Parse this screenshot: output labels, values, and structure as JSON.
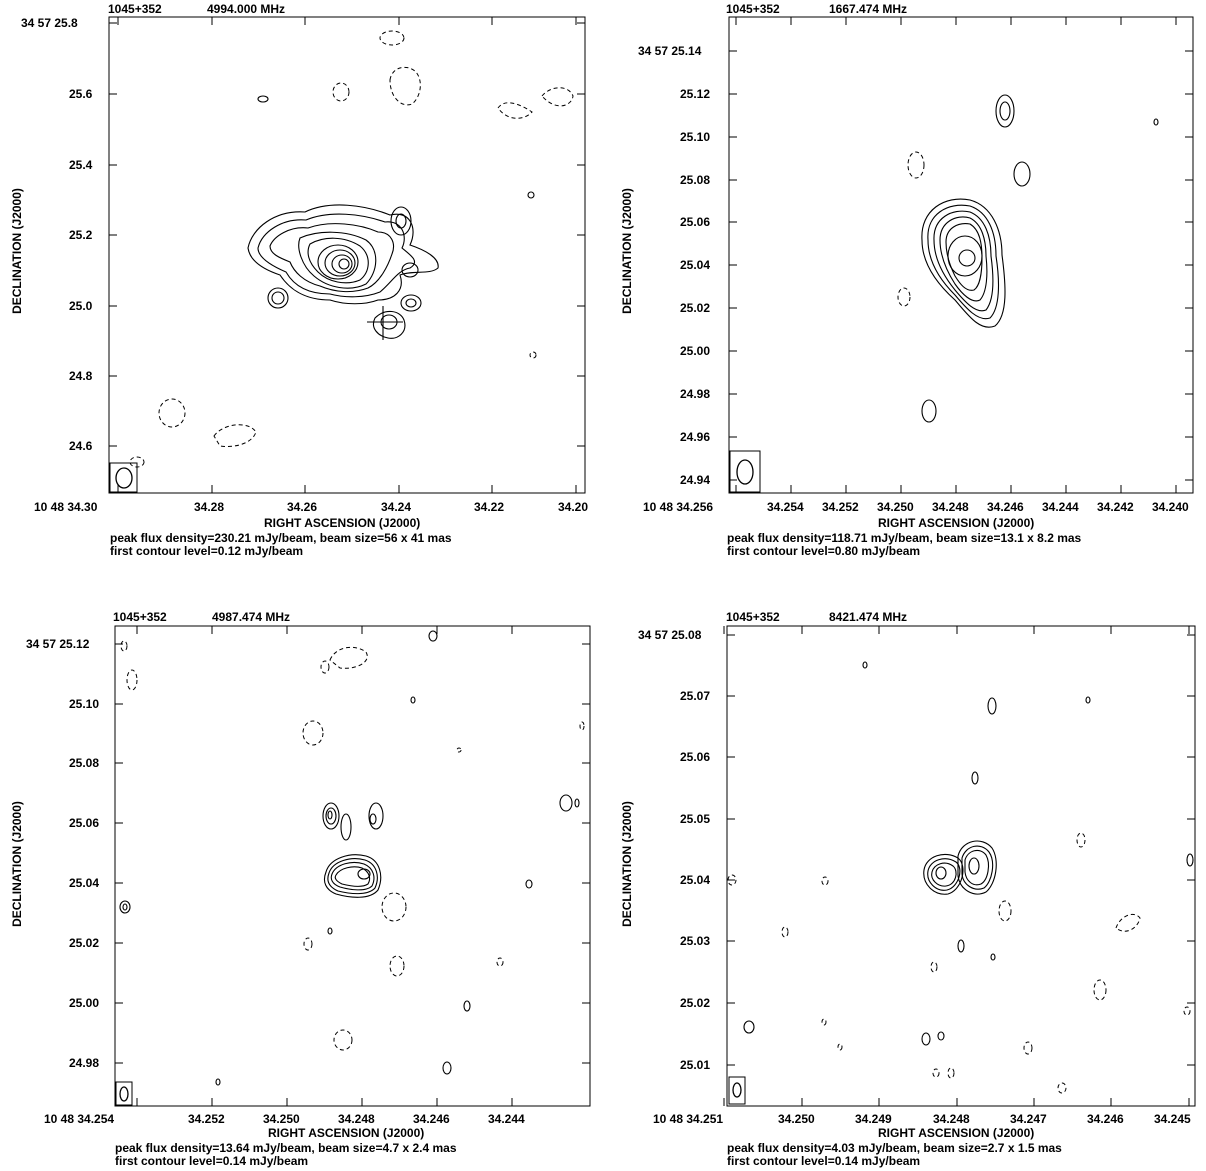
{
  "panels": [
    {
      "source": "1045+352",
      "freq": "4994.000 MHz",
      "xlabel": "RIGHT ASCENSION (J2000)",
      "ylabel": "DECLINATION (J2000)",
      "note1": "peak flux density=230.21 mJy/beam, beam size=56 x 41 mas",
      "note2": "first contour level=0.12 mJy/beam",
      "xticks": [
        "10 48 34.30",
        "34.28",
        "34.26",
        "34.24",
        "34.22",
        "34.20"
      ],
      "yticks": [
        "34 57 25.8",
        "25.6",
        "25.4",
        "25.2",
        "25.0",
        "24.8",
        "24.6"
      ]
    },
    {
      "source": "1045+352",
      "freq": "1667.474 MHz",
      "xlabel": "RIGHT ASCENSION (J2000)",
      "ylabel": "DECLINATION (J2000)",
      "note1": "peak flux density=118.71 mJy/beam, beam size=13.1 x 8.2 mas",
      "note2": "first contour level=0.80 mJy/beam",
      "xticks": [
        "10 48 34.256",
        "34.254",
        "34.252",
        "34.250",
        "34.248",
        "34.246",
        "34.244",
        "34.242",
        "34.240"
      ],
      "yticks": [
        "34 57 25.14",
        "25.12",
        "25.10",
        "25.08",
        "25.06",
        "25.04",
        "25.02",
        "25.00",
        "24.98",
        "24.96",
        "24.94"
      ]
    },
    {
      "source": "1045+352",
      "freq": "4987.474 MHz",
      "xlabel": "RIGHT ASCENSION (J2000)",
      "ylabel": "DECLINATION (J2000)",
      "note1": "peak flux density=13.64 mJy/beam, beam size=4.7 x 2.4 mas",
      "note2": "first contour level=0.14 mJy/beam",
      "xticks": [
        "10 48 34.254",
        "34.252",
        "34.250",
        "34.248",
        "34.246",
        "34.244"
      ],
      "yticks": [
        "34 57 25.12",
        "25.10",
        "25.08",
        "25.06",
        "25.04",
        "25.02",
        "25.00",
        "24.98"
      ]
    },
    {
      "source": "1045+352",
      "freq": "8421.474 MHz",
      "xlabel": "RIGHT ASCENSION (J2000)",
      "ylabel": "DECLINATION (J2000)",
      "note1": "peak flux density=4.03 mJy/beam, beam size=2.7 x 1.5 mas",
      "note2": "first contour level=0.14 mJy/beam",
      "xticks": [
        "10 48 34.251",
        "34.250",
        "34.249",
        "34.248",
        "34.247",
        "34.246",
        "34.245"
      ],
      "yticks": [
        "34 57 25.08",
        "25.07",
        "25.06",
        "25.05",
        "25.04",
        "25.03",
        "25.02",
        "25.01"
      ]
    }
  ]
}
